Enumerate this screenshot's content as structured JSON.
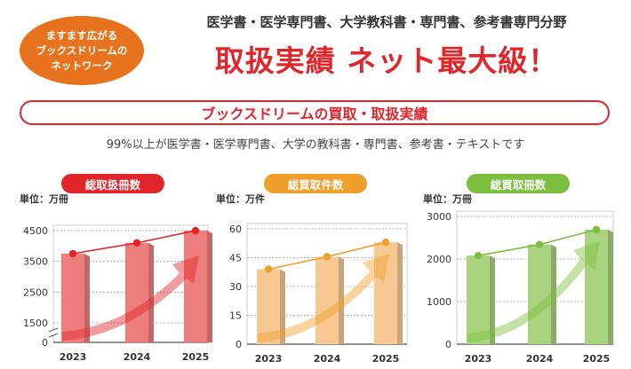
{
  "badge": {
    "line1": "ますます広がる",
    "line2": "ブックスドリームの",
    "line3": "ネットワーク"
  },
  "header": {
    "subtitle": "医学書・医学専門書、大学教科書・専門書、参考書専門分野",
    "headline": "取扱実績 ネット最大級！"
  },
  "banner": {
    "title": "ブックスドリームの買取・取扱実績"
  },
  "description": "99%以上が医学書・医学専門書、大学の教科書・専門書、参考書・テキストです",
  "colors": {
    "accent_red": "#e0262b",
    "accent_orange": "#f0a02a",
    "accent_green": "#7cbf3e",
    "badge_orange": "#e8731e"
  },
  "chart_data": [
    {
      "type": "bar",
      "title": "総取扱冊数",
      "unit": "単位：万冊",
      "categories": [
        "2023",
        "2024",
        "2025"
      ],
      "values": [
        3750,
        4100,
        4500
      ],
      "y_ticks": [
        "0",
        "1500",
        "2500",
        "3500",
        "4500"
      ],
      "y_tick_values": [
        0,
        1500,
        2500,
        3500,
        4500
      ],
      "ylim": [
        0,
        4500
      ],
      "axis_break": true,
      "grid": true,
      "bar_color": "#ee7d7d",
      "line_color": "#e0262b",
      "title_color": "#e0262b"
    },
    {
      "type": "bar",
      "title": "総買取件数",
      "unit": "単位：万件",
      "categories": [
        "2023",
        "2024",
        "2025"
      ],
      "values": [
        39,
        45.5,
        53
      ],
      "y_ticks": [
        "0",
        "15",
        "30",
        "45",
        "60"
      ],
      "y_tick_values": [
        0,
        15,
        30,
        45,
        60
      ],
      "ylim": [
        0,
        60
      ],
      "axis_break": false,
      "grid": true,
      "bar_color": "#f7c891",
      "line_color": "#f0a02a",
      "title_color": "#f0a02a"
    },
    {
      "type": "bar",
      "title": "総買取冊数",
      "unit": "単位：万冊",
      "categories": [
        "2023",
        "2024",
        "2025"
      ],
      "values": [
        2080,
        2340,
        2690
      ],
      "y_ticks": [
        "0",
        "1000",
        "2000",
        "3000"
      ],
      "y_tick_values": [
        0,
        1000,
        2000,
        3000
      ],
      "ylim": [
        0,
        3000
      ],
      "axis_break": false,
      "grid": true,
      "bar_color": "#a9d37e",
      "line_color": "#7cbf3e",
      "title_color": "#7cbf3e"
    }
  ]
}
